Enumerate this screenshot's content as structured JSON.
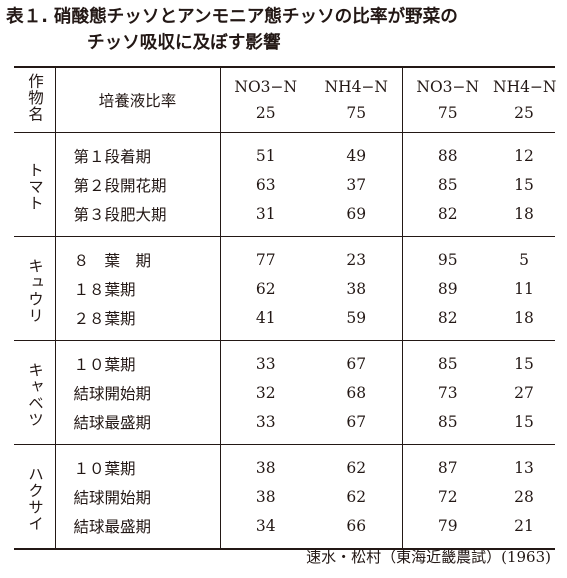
{
  "title": {
    "label": "表１.",
    "line1": "硝酸態チッソとアンモニア態チッソの比率が野菜の",
    "line2": "チッソ吸収に及ぼす影響"
  },
  "table": {
    "col_crop": "作物名",
    "col_stage": "培養液比率",
    "ratio_cols": [
      {
        "name": "NO3−N",
        "value": "25"
      },
      {
        "name": "NH4−N",
        "value": "75"
      },
      {
        "name": "NO3−N",
        "value": "75"
      },
      {
        "name": "NH4−N",
        "value": "25"
      }
    ],
    "groups": [
      {
        "crop": "トマト",
        "rows": [
          {
            "stage": "第１段着期",
            "v": [
              "51",
              "49",
              "88",
              "12"
            ]
          },
          {
            "stage": "第２段開花期",
            "v": [
              "63",
              "37",
              "85",
              "15"
            ]
          },
          {
            "stage": "第３段肥大期",
            "v": [
              "31",
              "69",
              "82",
              "18"
            ]
          }
        ]
      },
      {
        "crop": "キュウリ",
        "rows": [
          {
            "stage": "８　葉　期",
            "v": [
              "77",
              "23",
              "95",
              "5"
            ]
          },
          {
            "stage": "１８葉期",
            "v": [
              "62",
              "38",
              "89",
              "11"
            ]
          },
          {
            "stage": "２８葉期",
            "v": [
              "41",
              "59",
              "82",
              "18"
            ]
          }
        ]
      },
      {
        "crop": "キャベツ",
        "rows": [
          {
            "stage": "１０葉期",
            "v": [
              "33",
              "67",
              "85",
              "15"
            ]
          },
          {
            "stage": "結球開始期",
            "v": [
              "32",
              "68",
              "73",
              "27"
            ]
          },
          {
            "stage": "結球最盛期",
            "v": [
              "33",
              "67",
              "85",
              "15"
            ]
          }
        ]
      },
      {
        "crop": "ハクサイ",
        "rows": [
          {
            "stage": "１０葉期",
            "v": [
              "38",
              "62",
              "87",
              "13"
            ]
          },
          {
            "stage": "結球開始期",
            "v": [
              "38",
              "62",
              "72",
              "28"
            ]
          },
          {
            "stage": "結球最盛期",
            "v": [
              "34",
              "66",
              "79",
              "21"
            ]
          }
        ]
      }
    ]
  },
  "source": "速水・松村（東海近畿農試）(1963)"
}
